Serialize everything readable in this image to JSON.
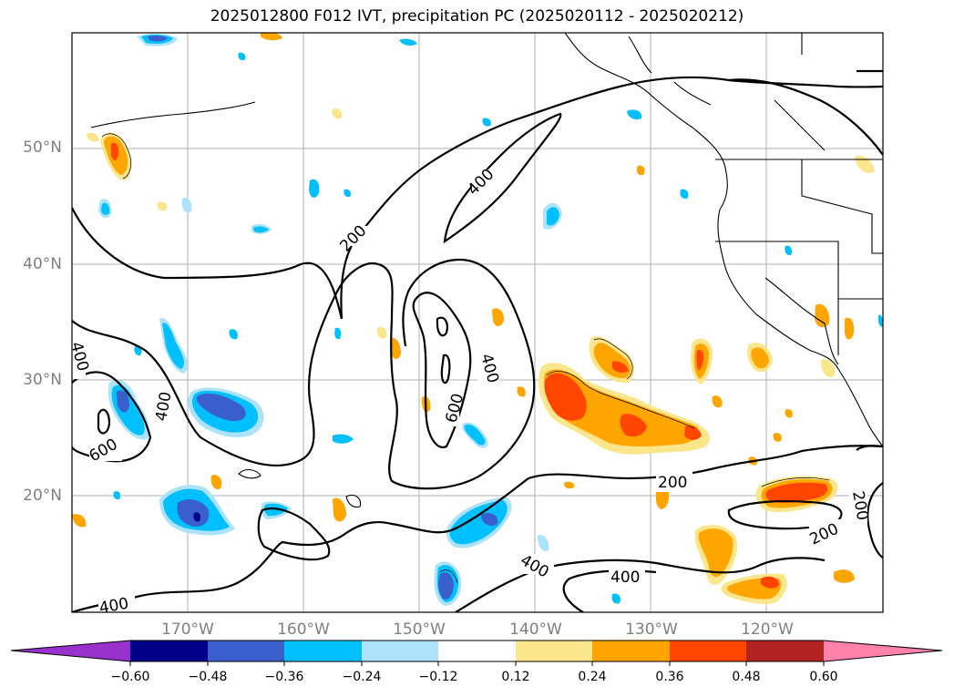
{
  "title": "2025012800 F012 IVT, precipitation PC (2025020112 - 2025020212)",
  "lat_labels": [
    "50°N",
    "40°N",
    "30°N",
    "20°N"
  ],
  "lon_labels": [
    "170°W",
    "160°W",
    "150°W",
    "140°W",
    "130°W",
    "120°W"
  ],
  "contour_labels": {
    "c400_north": "400",
    "c200_north": "200",
    "c600_center": "600",
    "c400_center": "400",
    "c400_west": "400",
    "c400_west2": "400",
    "c600_west": "600",
    "c200_south": "200",
    "c200_east": "200",
    "c200_east2": "200",
    "c400_south": "400",
    "c400_south2": "400",
    "c400_sw": "400"
  },
  "colorbar": {
    "ticks": [
      "−0.60",
      "−0.48",
      "−0.36",
      "−0.24",
      "−0.12",
      "0.12",
      "0.24",
      "0.36",
      "0.48",
      "0.60"
    ],
    "colors": [
      "#9932cc",
      "#00008b",
      "#3a5fcd",
      "#00bfff",
      "#ade3fa",
      "#ffffff",
      "#fbe68c",
      "#ffa500",
      "#ff4500",
      "#b22222",
      "#ff82ab",
      "#ff82ab"
    ]
  }
}
